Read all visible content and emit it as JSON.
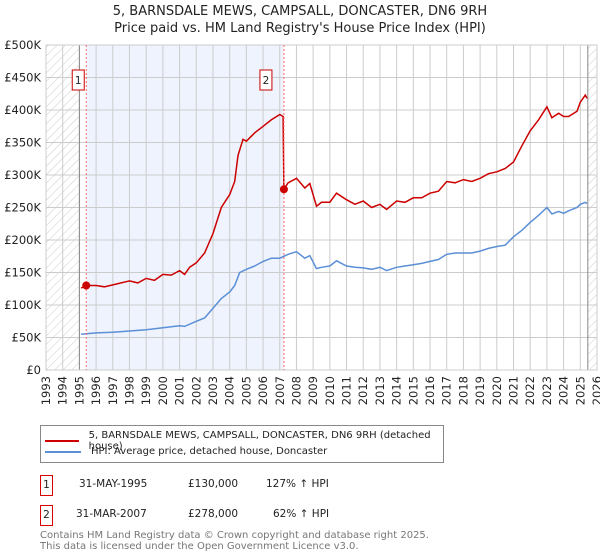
{
  "title_line1": "5, BARNSDALE MEWS, CAMPSALL, DONCASTER, DN6 9RH",
  "title_line2": "Price paid vs. HM Land Registry's House Price Index (HPI)",
  "chart_data": {
    "type": "line",
    "title": "5, BARNSDALE MEWS, CAMPSALL, DONCASTER, DN6 9RH — Price paid vs. HM Land Registry's House Price Index (HPI)",
    "xlim": [
      1993,
      2026
    ],
    "ylim": [
      0,
      500000
    ],
    "x_ticks": [
      "1993",
      "1994",
      "1995",
      "1996",
      "1997",
      "1998",
      "1999",
      "2000",
      "2001",
      "2002",
      "2003",
      "2004",
      "2005",
      "2006",
      "2007",
      "2008",
      "2009",
      "2010",
      "2011",
      "2012",
      "2013",
      "2014",
      "2015",
      "2016",
      "2017",
      "2018",
      "2019",
      "2020",
      "2021",
      "2022",
      "2023",
      "2024",
      "2025",
      "2026"
    ],
    "y_ticks": [
      "£0",
      "£50K",
      "£100K",
      "£150K",
      "£200K",
      "£250K",
      "£300K",
      "£350K",
      "£400K",
      "£450K",
      "£500K"
    ],
    "grid": true,
    "series": [
      {
        "name": "5, BARNSDALE MEWS, CAMPSALL, DONCASTER, DN6 9RH (detached house)",
        "color": "#cc0000",
        "x": [
          1995.1,
          1995.4,
          1996,
          1996.5,
          1997,
          1998,
          1998.5,
          1999,
          1999.5,
          2000,
          2000.5,
          2001,
          2001.3,
          2001.6,
          2002,
          2002.5,
          2003,
          2003.5,
          2004,
          2004.3,
          2004.5,
          2004.8,
          2005,
          2005.5,
          2006,
          2006.5,
          2007,
          2007.2,
          2007.25,
          2007.5,
          2008,
          2008.5,
          2008.8,
          2009.2,
          2009.5,
          2010,
          2010.4,
          2011,
          2011.5,
          2012,
          2012.5,
          2013,
          2013.4,
          2014,
          2014.5,
          2015,
          2015.5,
          2016,
          2016.5,
          2017,
          2017.5,
          2018,
          2018.5,
          2019,
          2019.5,
          2020,
          2020.5,
          2021,
          2021.5,
          2022,
          2022.5,
          2023,
          2023.3,
          2023.7,
          2024,
          2024.3,
          2024.8,
          2025,
          2025.3,
          2025.4
        ],
        "y": [
          126000,
          130000,
          130000,
          128000,
          131000,
          137000,
          134000,
          141000,
          138000,
          147000,
          146000,
          153000,
          147000,
          158000,
          165000,
          180000,
          210000,
          250000,
          270000,
          290000,
          330000,
          355000,
          352000,
          365000,
          375000,
          385000,
          393000,
          390000,
          278000,
          288000,
          295000,
          280000,
          287000,
          252000,
          258000,
          258000,
          272000,
          262000,
          255000,
          260000,
          250000,
          255000,
          247000,
          260000,
          258000,
          265000,
          265000,
          272000,
          275000,
          290000,
          288000,
          293000,
          290000,
          295000,
          302000,
          305000,
          310000,
          320000,
          345000,
          368000,
          385000,
          405000,
          388000,
          395000,
          390000,
          390000,
          398000,
          412000,
          423000,
          418000
        ]
      },
      {
        "name": "HPI: Average price, detached house, Doncaster",
        "color": "#5b8fd6",
        "x": [
          1995.1,
          1996,
          1997,
          1998,
          1999,
          2000,
          2001,
          2001.3,
          2002,
          2002.5,
          2003,
          2003.5,
          2004,
          2004.3,
          2004.6,
          2005,
          2005.5,
          2006,
          2006.5,
          2007,
          2007.5,
          2008,
          2008.5,
          2008.8,
          2009.2,
          2009.5,
          2010,
          2010.4,
          2011,
          2011.5,
          2012,
          2012.5,
          2013,
          2013.4,
          2014,
          2014.5,
          2015,
          2015.5,
          2016,
          2016.5,
          2017,
          2017.5,
          2018,
          2018.5,
          2019,
          2019.5,
          2020,
          2020.5,
          2021,
          2021.5,
          2022,
          2022.5,
          2023,
          2023.3,
          2023.7,
          2024,
          2024.3,
          2024.8,
          2025,
          2025.3,
          2025.4
        ],
        "y": [
          55000,
          57000,
          58000,
          60000,
          62000,
          65000,
          68000,
          67000,
          75000,
          80000,
          95000,
          110000,
          120000,
          130000,
          150000,
          155000,
          160000,
          167000,
          172000,
          172000,
          178000,
          182000,
          172000,
          176000,
          156000,
          158000,
          160000,
          168000,
          160000,
          158000,
          157000,
          155000,
          158000,
          153000,
          158000,
          160000,
          162000,
          164000,
          167000,
          170000,
          178000,
          180000,
          180000,
          180000,
          183000,
          187000,
          190000,
          192000,
          205000,
          215000,
          227000,
          238000,
          250000,
          240000,
          244000,
          241000,
          245000,
          250000,
          255000,
          258000,
          256000
        ]
      }
    ],
    "annotations": [
      {
        "label": "1",
        "x": 1995.41,
        "y": 130000
      },
      {
        "label": "2",
        "x": 2007.25,
        "y": 278000
      }
    ],
    "legend_placement": "below"
  },
  "legend": {
    "property": "5, BARNSDALE MEWS, CAMPSALL, DONCASTER, DN6 9RH (detached house)",
    "hpi": "HPI: Average price, detached house, Doncaster"
  },
  "sales": [
    {
      "num": "1",
      "date": "31-MAY-1995",
      "price": "£130,000",
      "hpi": "127% ↑ HPI"
    },
    {
      "num": "2",
      "date": "31-MAR-2007",
      "price": "£278,000",
      "hpi": "62% ↑ HPI"
    }
  ],
  "footer": {
    "line1": "Contains HM Land Registry data © Crown copyright and database right 2025.",
    "line2": "This data is licensed under the Open Government Licence v3.0."
  },
  "colors": {
    "property": "#cc0000",
    "hpi": "#5b8fd6",
    "shade": "#eef3fd"
  }
}
